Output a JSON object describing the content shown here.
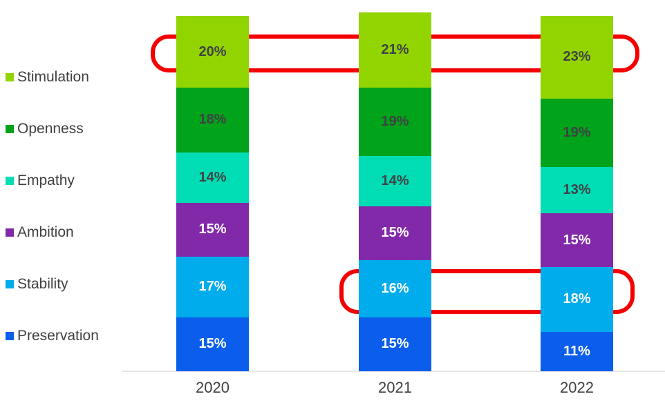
{
  "chart_data": {
    "type": "bar",
    "variant": "stacked-vertical-100",
    "title": "",
    "categories": [
      "2020",
      "2021",
      "2022"
    ],
    "series": [
      {
        "name": "Stimulation",
        "values": [
          20,
          21,
          23
        ],
        "color": "#92D400",
        "label_color": "#3F4245"
      },
      {
        "name": "Openness",
        "values": [
          18,
          19,
          19
        ],
        "color": "#00A319",
        "label_color": "#3F4245"
      },
      {
        "name": "Empathy",
        "values": [
          14,
          14,
          13
        ],
        "color": "#00DCB4",
        "label_color": "#3F4245"
      },
      {
        "name": "Ambition",
        "values": [
          15,
          15,
          15
        ],
        "color": "#8129A9",
        "label_color": "#FFFFFF"
      },
      {
        "name": "Stability",
        "values": [
          17,
          16,
          18
        ],
        "color": "#00ACEC",
        "label_color": "#FFFFFF"
      },
      {
        "name": "Preservation",
        "values": [
          15,
          15,
          11
        ],
        "color": "#0A5EEB",
        "label_color": "#FFFFFF"
      }
    ],
    "value_suffix": "%",
    "legend_position": "left",
    "grid": false,
    "axis_line_color": "#E6E6E6",
    "text_color": "#404040",
    "background_color": "#FFFFFF",
    "annotations": [
      {
        "type": "highlight-box",
        "color": "#F40000",
        "target_series": "Stimulation",
        "target_categories": [
          "2020",
          "2021",
          "2022"
        ],
        "labels_highlighted": [
          "20%",
          "21%",
          "23%"
        ]
      },
      {
        "type": "highlight-box",
        "color": "#F40000",
        "target_series": "Stability",
        "target_categories": [
          "2021",
          "2022"
        ],
        "labels_highlighted": [
          "16%",
          "18%"
        ]
      }
    ]
  }
}
